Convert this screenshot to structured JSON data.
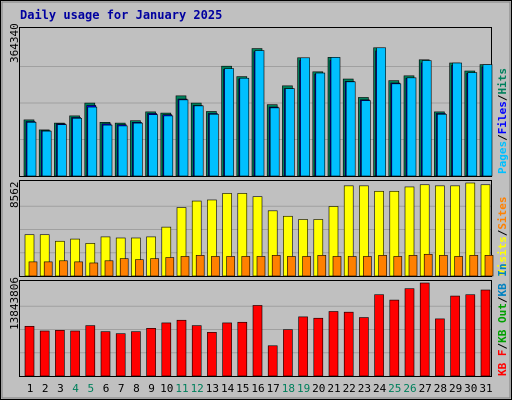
{
  "chart_data": {
    "title": "Daily usage for January 2025",
    "days": [
      "1",
      "2",
      "3",
      "4",
      "5",
      "6",
      "7",
      "8",
      "9",
      "10",
      "11",
      "12",
      "13",
      "14",
      "15",
      "16",
      "17",
      "18",
      "19",
      "20",
      "21",
      "22",
      "23",
      "24",
      "25",
      "26",
      "27",
      "28",
      "29",
      "30",
      "31"
    ],
    "weekend_days": [
      "4",
      "5",
      "11",
      "12",
      "18",
      "19",
      "25",
      "26"
    ],
    "colors": {
      "title": "#0000a0",
      "background": "#c0c0c0",
      "hits": "#00805c",
      "files": "#0000ff",
      "pages": "#00c0ff",
      "visits": "#ffff00",
      "sites": "#ff8000",
      "kbin": "#0080c0",
      "kbout": "#00a000",
      "kbf": "#ff0000",
      "weekend": "#00805c",
      "weekday": "#000000"
    },
    "panels": [
      {
        "type": "bar",
        "ymax": 364340,
        "ymax_label": "364340",
        "legend": [
          {
            "label": "Pages",
            "color": "#00c0ff"
          },
          {
            "label": "/",
            "color": "#000000"
          },
          {
            "label": "Files",
            "color": "#0000ff"
          },
          {
            "label": "/",
            "color": "#000000"
          },
          {
            "label": "Hits",
            "color": "#00805c"
          }
        ],
        "series": [
          {
            "name": "Hits",
            "color": "#00805c",
            "values": [
              140000,
              115000,
              132000,
              150000,
              182000,
              134000,
              132000,
              138000,
              160000,
              157000,
              200000,
              182000,
              161000,
              274000,
              248000,
              318000,
              178000,
              225000,
              295000,
              260000,
              296000,
              242000,
              196000,
              320000,
              238000,
              250000,
              290000,
              160000,
              282000,
              262000,
              278000
            ]
          },
          {
            "name": "Files",
            "color": "#0000ff",
            "values": [
              136000,
              113000,
              130000,
              146000,
              176000,
              130000,
              128000,
              134000,
              156000,
              153000,
              192000,
              176000,
              156000,
              266000,
              242000,
              310000,
              172000,
              218000,
              288000,
              254000,
              288000,
              236000,
              190000,
              312000,
              232000,
              244000,
              282000,
              156000,
              276000,
              256000,
              272000
            ]
          },
          {
            "name": "Pages",
            "color": "#00c0ff",
            "values": [
              134000,
              112000,
              128000,
              144000,
              172000,
              127000,
              125000,
              132000,
              153000,
              150000,
              190000,
              175000,
              154000,
              268000,
              244000,
              313000,
              170000,
              218000,
              295000,
              257000,
              296000,
              235000,
              188000,
              320000,
              230000,
              245000,
              288000,
              154000,
              282000,
              258000,
              278000
            ]
          }
        ]
      },
      {
        "type": "bar",
        "ymax": 8562,
        "ymax_label": "8562",
        "legend": [
          {
            "label": "Visits",
            "color": "#ffff00"
          },
          {
            "label": "/",
            "color": "#000000"
          },
          {
            "label": "Sites",
            "color": "#ff8000"
          }
        ],
        "series": [
          {
            "name": "Visits",
            "color": "#ffff00",
            "values": [
              3800,
              3800,
              3200,
              3400,
              3000,
              3600,
              3500,
              3500,
              3600,
              4500,
              6300,
              6900,
              7000,
              7600,
              7600,
              7300,
              6000,
              5500,
              5200,
              5200,
              6400,
              8300,
              8300,
              7800,
              7800,
              8200,
              8400,
              8300,
              8300,
              8562,
              8400
            ]
          },
          {
            "name": "Sites",
            "color": "#ff8000",
            "values": [
              1300,
              1300,
              1400,
              1300,
              1200,
              1400,
              1600,
              1500,
              1600,
              1700,
              1800,
              1900,
              1800,
              1800,
              1800,
              1800,
              1900,
              1800,
              1800,
              1900,
              1800,
              1800,
              1800,
              1900,
              1800,
              1900,
              2000,
              1900,
              1800,
              1900,
              1900
            ]
          }
        ]
      },
      {
        "type": "bar",
        "ymax": 13843806,
        "ymax_label": "13843806",
        "legend": [
          {
            "label": "KB F",
            "color": "#ff0000"
          },
          {
            "label": "/",
            "color": "#000000"
          },
          {
            "label": "KB Out",
            "color": "#00a000"
          },
          {
            "label": "/",
            "color": "#000000"
          },
          {
            "label": "KB In",
            "color": "#0080c0"
          }
        ],
        "series": [
          {
            "name": "KB F",
            "color": "#ff0000",
            "values": [
              7400000,
              6700000,
              6800000,
              6700000,
              7500000,
              6600000,
              6300000,
              6600000,
              7100000,
              7900000,
              8300000,
              7500000,
              6500000,
              7900000,
              8000000,
              10500000,
              4500000,
              6900000,
              8800000,
              8600000,
              9600000,
              9500000,
              8700000,
              12100000,
              11300000,
              13000000,
              13843806,
              8500000,
              11900000,
              12100000,
              12800000
            ]
          }
        ]
      }
    ]
  }
}
